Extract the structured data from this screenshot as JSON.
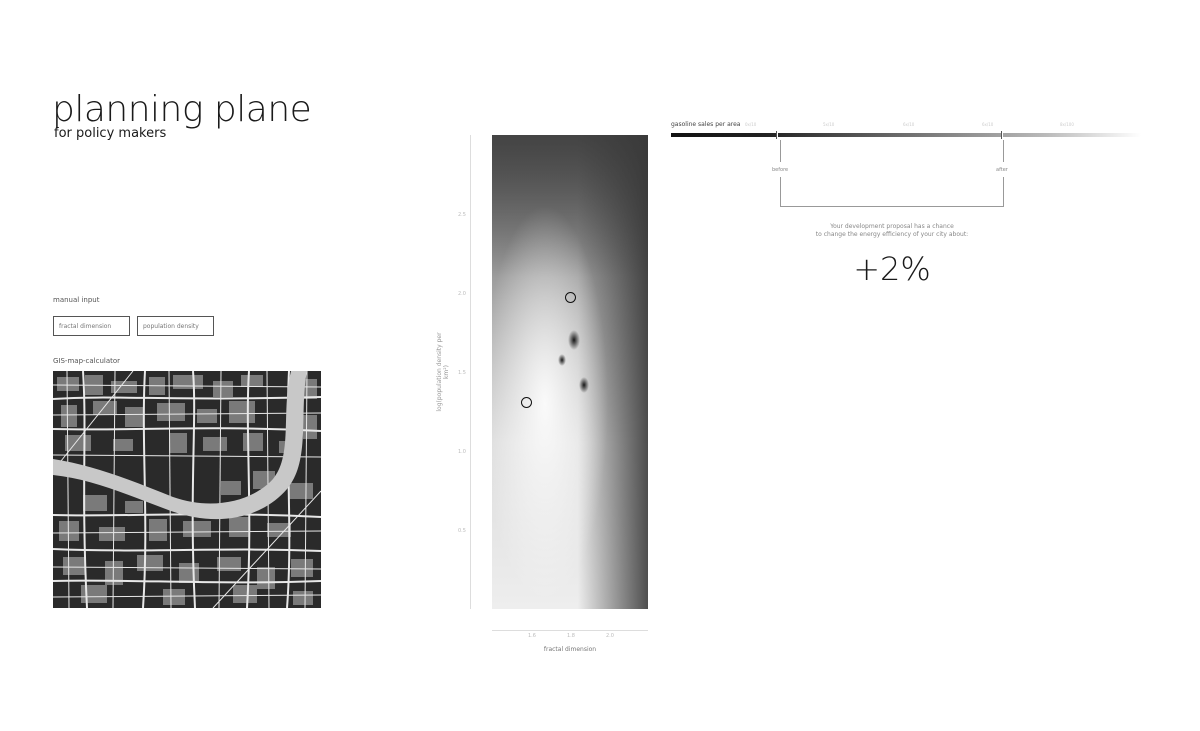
{
  "header": {
    "title": "planning plane",
    "subtitle": "for policy makers"
  },
  "manual_input": {
    "label": "manual input",
    "fields": [
      {
        "placeholder": "fractal dimension"
      },
      {
        "placeholder": "population density"
      }
    ]
  },
  "gis": {
    "label": "GIS-map-calculator"
  },
  "heatmap": {
    "y_ticks": [
      "2.5",
      "2.0",
      "1.5",
      "1.0",
      "0.5"
    ],
    "y_label": "log(population density per km²)",
    "x_ticks": [
      "1.6",
      "1.8",
      "2.0"
    ],
    "x_label": "fractal dimension",
    "markers": [
      {
        "name": "before",
        "fractal": 1.82,
        "logdensity": 2.0
      },
      {
        "name": "after",
        "fractal": 1.68,
        "logdensity": 1.4
      }
    ]
  },
  "scale": {
    "title": "gasoline sales per area",
    "ticks": [
      "0x/10",
      "5x/10",
      "6x/10",
      "6x/10",
      "8x/100"
    ],
    "before_label": "before",
    "after_label": "after",
    "proposal_text_1": "Your development proposal has a chance",
    "proposal_text_2": "to change the energy efficiency of your city about:",
    "change": "+2%"
  },
  "colors": {
    "background": "#ffffff",
    "ink": "#1a1a1a",
    "map_ground": "#1f1f1f",
    "river": "#c8c8c8"
  }
}
